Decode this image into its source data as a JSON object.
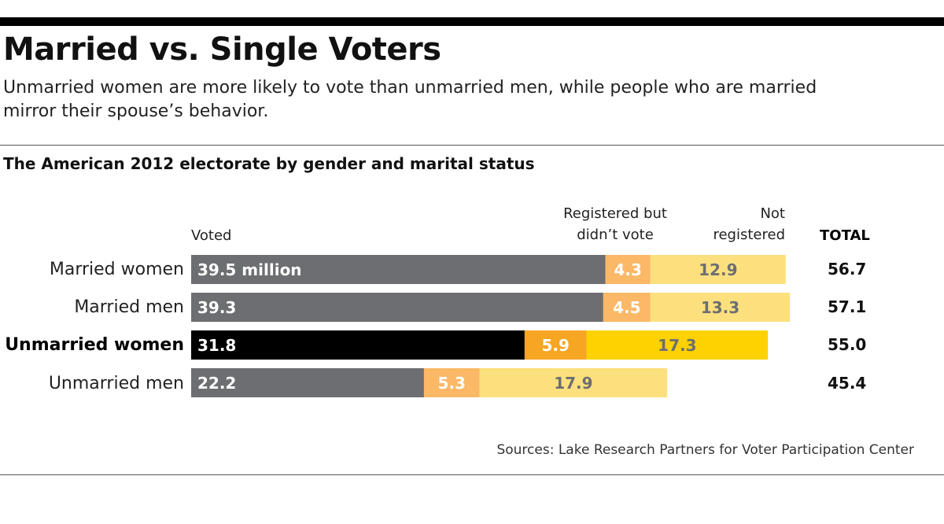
{
  "header": {
    "title": "Married vs. Single Voters",
    "subtitle": "Unmarried women are more likely to vote than unmarried men, while people who are married mirror their spouse’s behavior."
  },
  "chart_title": "The American 2012 electorate by gender and marital status",
  "columns": {
    "voted": "Voted",
    "registered_line1": "Registered but",
    "registered_line2": "didn’t vote",
    "not_registered_line1": "Not",
    "not_registered_line2": "registered",
    "total": "TOTAL"
  },
  "source": "Sources: Lake Research Partners for Voter Participation Center",
  "colors": {
    "voted": "#6d6e71",
    "voted_highlight": "#000000",
    "registered": "#fbb867",
    "registered_highlight": "#f6a623",
    "not_registered": "#fde07e",
    "not_registered_highlight": "#fdd200"
  },
  "chart_data": {
    "type": "bar",
    "orientation": "horizontal",
    "stacked": true,
    "units": "million",
    "categories": [
      "Married women",
      "Married men",
      "Unmarried women",
      "Unmarried men"
    ],
    "highlight": "Unmarried women",
    "series": [
      {
        "name": "Voted",
        "values": [
          39.5,
          39.3,
          31.8,
          22.2
        ],
        "labels": [
          "39.5 million",
          "39.3",
          "31.8",
          "22.2"
        ]
      },
      {
        "name": "Registered but didn’t vote",
        "values": [
          4.3,
          4.5,
          5.9,
          5.3
        ],
        "labels": [
          "4.3",
          "4.5",
          "5.9",
          "5.3"
        ]
      },
      {
        "name": "Not registered",
        "values": [
          12.9,
          13.3,
          17.3,
          17.9
        ],
        "labels": [
          "12.9",
          "13.3",
          "17.3",
          "17.9"
        ]
      }
    ],
    "totals": [
      "56.7",
      "57.1",
      "55.0",
      "45.4"
    ]
  }
}
